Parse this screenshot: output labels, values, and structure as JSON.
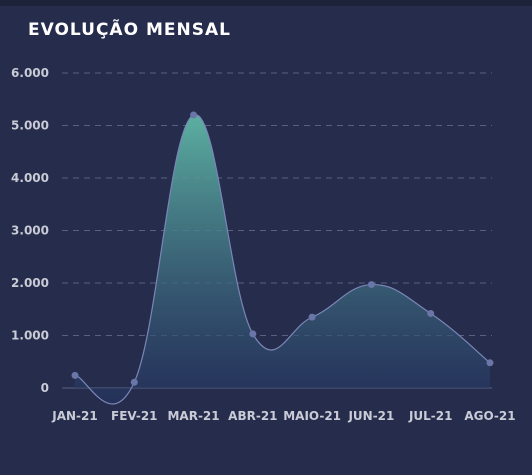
{
  "title": "EVOLUÇÃO  MENSAL",
  "chart_data": {
    "type": "area",
    "title": "EVOLUÇÃO  MENSAL",
    "categories": [
      "JAN-21",
      "FEV-21",
      "MAR-21",
      "ABR-21",
      "MAIO-21",
      "JUN-21",
      "JUL-21",
      "AGO-21"
    ],
    "values": [
      240,
      110,
      5200,
      1030,
      1350,
      1970,
      1420,
      480
    ],
    "ylim": [
      0,
      6000
    ],
    "yticks": [
      0,
      1000,
      2000,
      3000,
      4000,
      5000,
      6000
    ],
    "ytick_labels": [
      "0",
      "1.000",
      "2.000",
      "3.000",
      "4.000",
      "5.000",
      "6.000"
    ],
    "grid": true,
    "colors": {
      "background": "#252c4c",
      "grid": "#5a6180",
      "area_top": "#5fb7a6",
      "area_bottom": "#243362",
      "line": "#7b86b8",
      "point": "#6a76a8",
      "axis_text": "#c9ccd6"
    }
  }
}
